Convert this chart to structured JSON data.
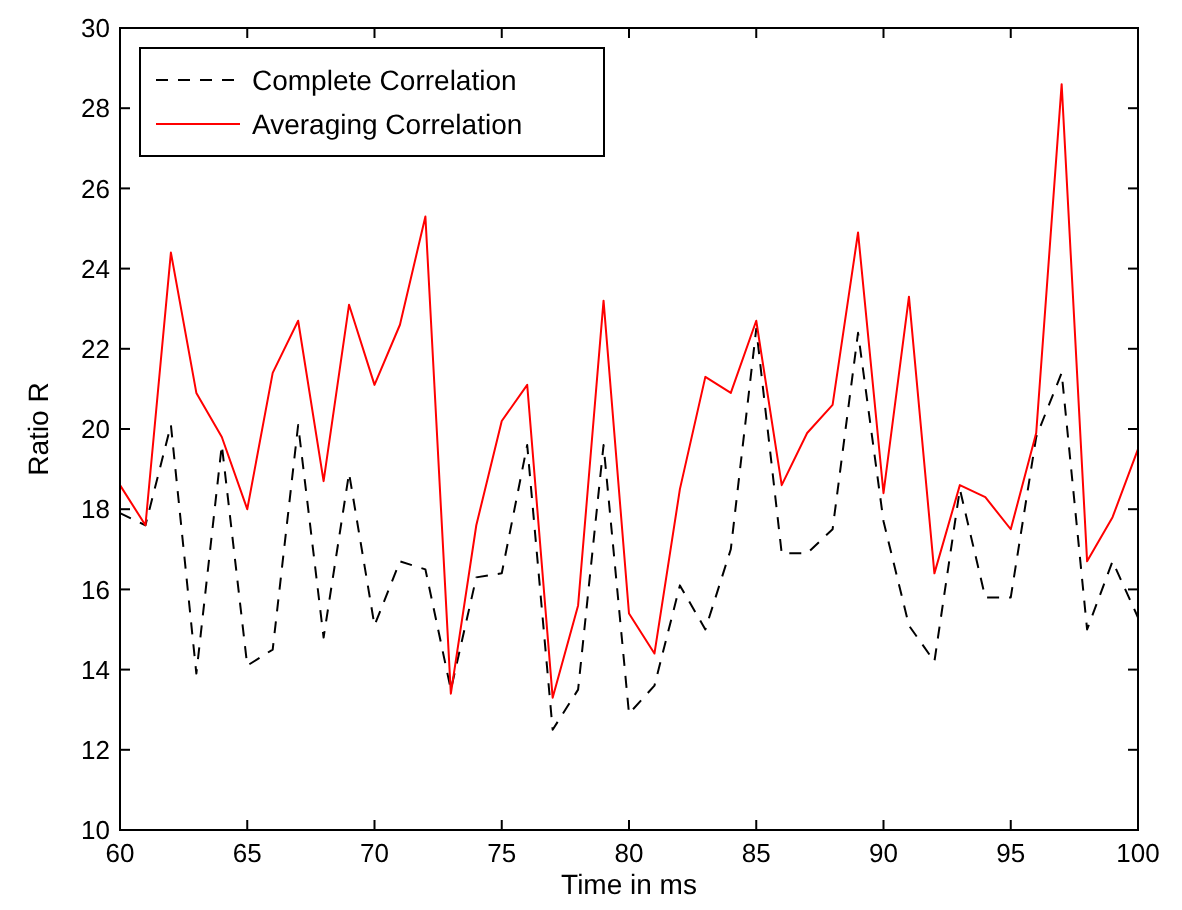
{
  "chart_data": {
    "type": "line",
    "xlabel": "Time in ms",
    "ylabel": "Ratio R",
    "x": [
      60,
      61,
      62,
      63,
      64,
      65,
      66,
      67,
      68,
      69,
      70,
      71,
      72,
      73,
      74,
      75,
      76,
      77,
      78,
      79,
      80,
      81,
      82,
      83,
      84,
      85,
      86,
      87,
      88,
      89,
      90,
      91,
      92,
      93,
      94,
      95,
      96,
      97,
      98,
      99,
      100
    ],
    "series": [
      {
        "name": "Complete Correlation",
        "color": "#000000",
        "line_style": "dashed",
        "values": [
          17.9,
          17.6,
          20.1,
          13.9,
          19.6,
          14.1,
          14.5,
          20.1,
          14.8,
          18.9,
          15.1,
          16.7,
          16.5,
          13.5,
          16.3,
          16.4,
          19.6,
          12.5,
          13.5,
          19.6,
          12.9,
          13.6,
          16.1,
          15.0,
          17.0,
          22.5,
          16.9,
          16.9,
          17.5,
          22.4,
          17.7,
          15.1,
          14.2,
          18.5,
          15.8,
          15.8,
          19.8,
          21.4,
          15.0,
          16.7,
          15.3
        ]
      },
      {
        "name": "Averaging Correlation",
        "color": "#ff0000",
        "line_style": "solid",
        "values": [
          18.6,
          17.6,
          24.4,
          20.9,
          19.8,
          18.0,
          21.4,
          22.7,
          18.7,
          23.1,
          21.1,
          22.6,
          25.3,
          13.4,
          17.6,
          20.2,
          21.1,
          13.3,
          15.6,
          23.2,
          15.4,
          14.4,
          18.5,
          21.3,
          20.9,
          22.7,
          18.6,
          19.9,
          20.6,
          24.9,
          18.4,
          23.3,
          16.4,
          18.6,
          18.3,
          17.5,
          19.9,
          28.6,
          16.7,
          17.8,
          19.5
        ]
      }
    ],
    "xlim": [
      60,
      100
    ],
    "xticks": [
      60,
      65,
      70,
      75,
      80,
      85,
      90,
      95,
      100
    ],
    "ylim": [
      10,
      30
    ],
    "yticks": [
      10,
      12,
      14,
      16,
      18,
      20,
      22,
      24,
      26,
      28,
      30
    ],
    "grid": false,
    "legend": "top left",
    "marker": "none"
  }
}
